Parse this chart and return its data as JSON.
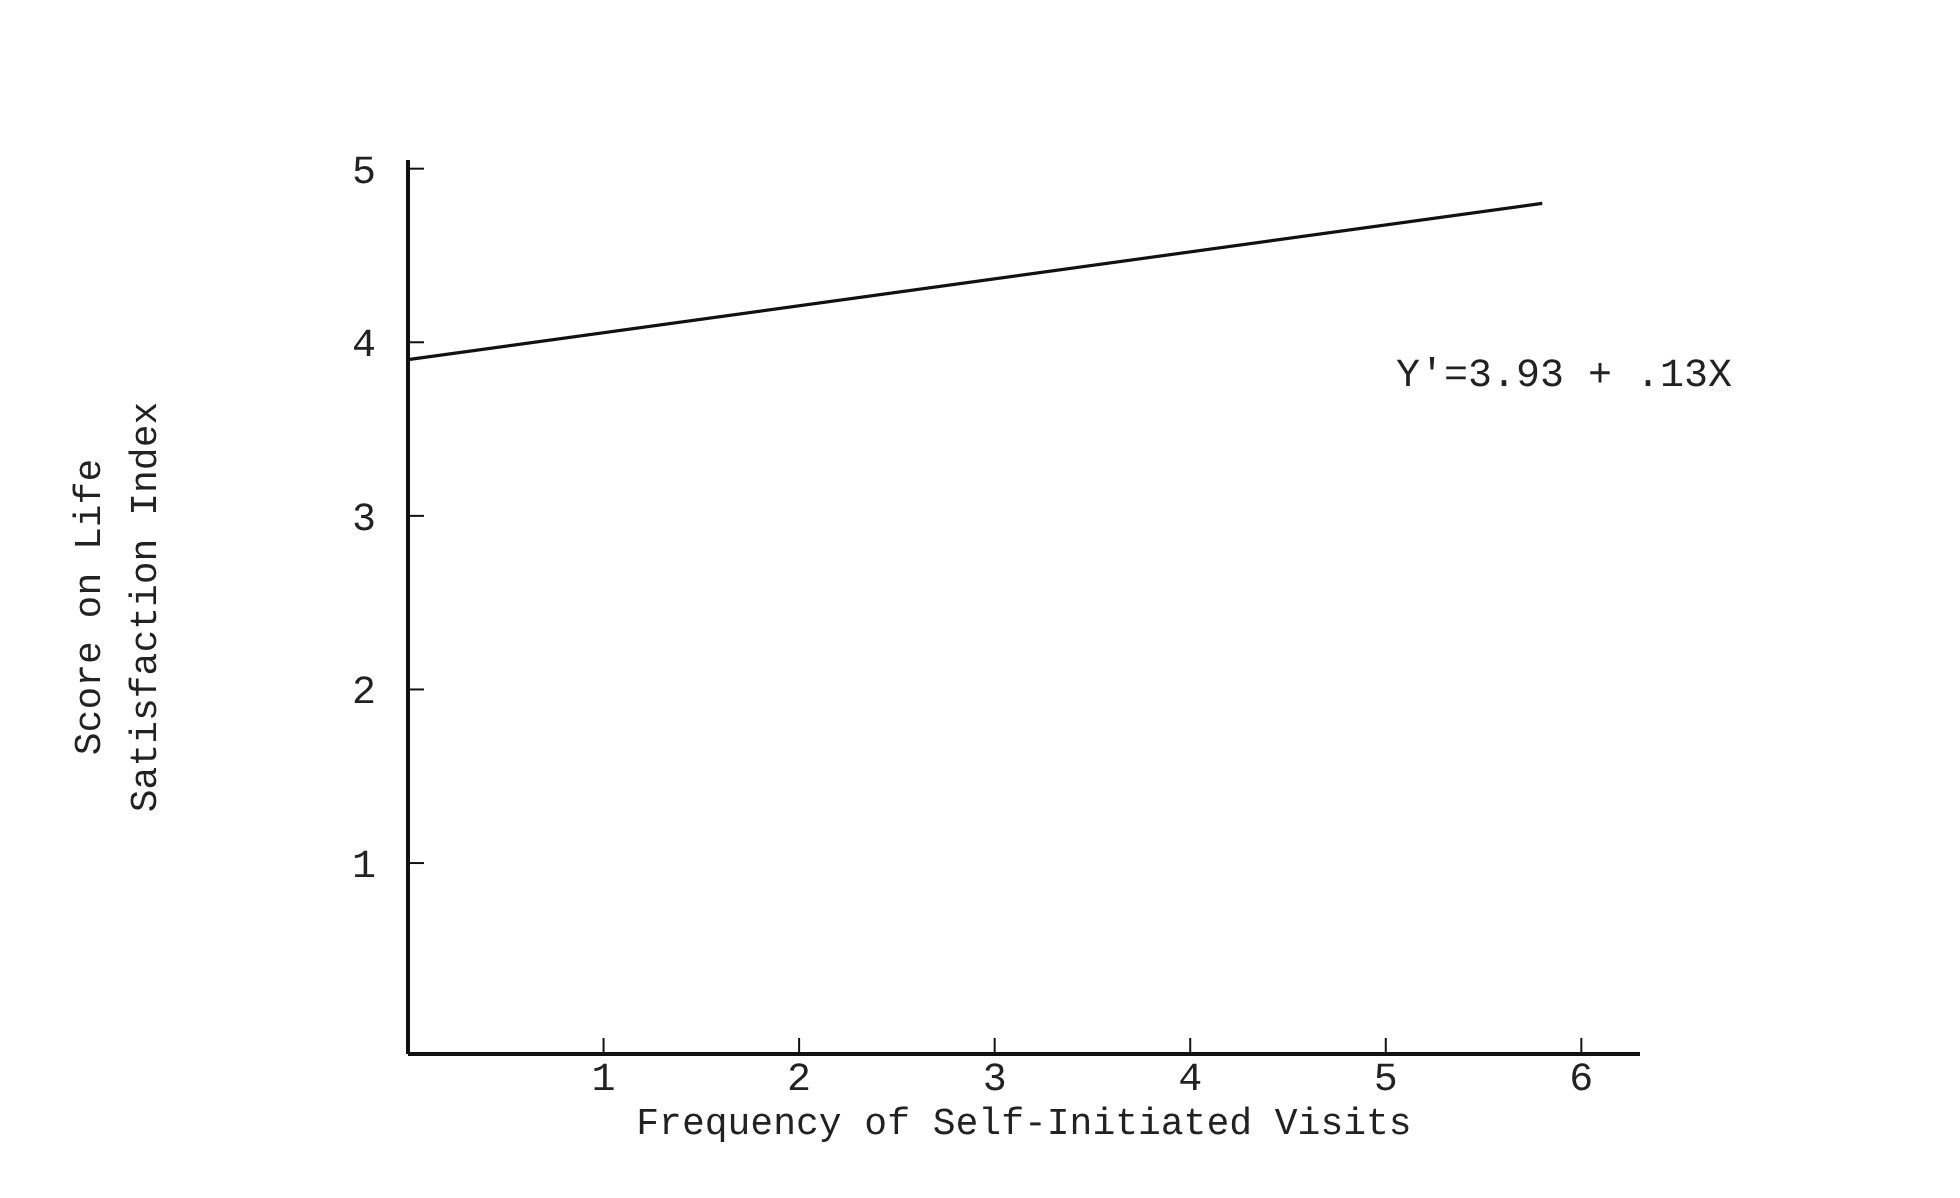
{
  "chart_data": {
    "type": "line",
    "xlabel": "Frequency of Self-Initiated Visits",
    "ylabel": "Score on Life\nSatisfaction Index",
    "x": [
      0,
      5.8
    ],
    "series": [
      {
        "color": "#111111",
        "values": [
          3.9,
          4.8
        ]
      }
    ],
    "xlim": [
      0,
      6.3
    ],
    "ylim": [
      -0.1,
      5.05
    ],
    "xticks": [
      1,
      2,
      3,
      4,
      5,
      6
    ],
    "yticks": [
      1,
      2,
      3,
      4,
      5
    ],
    "annotations": [
      "Y'=3.93 + .13X"
    ],
    "grid": false,
    "marker": "none",
    "line_style": "solid"
  }
}
